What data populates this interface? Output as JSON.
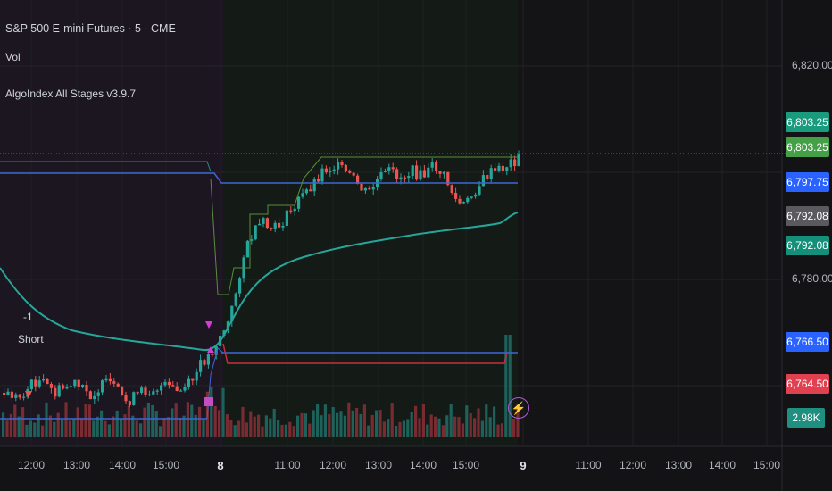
{
  "header": {
    "title": "S&P 500 E-mini Futures · 5 · CME",
    "vol_label": "Vol",
    "indicator_label": "AlgoIndex All Stages v3.9.7"
  },
  "price_axis": {
    "labels": [
      "6,820.00",
      "6,780.00"
    ]
  },
  "price_tags": [
    {
      "text": "6,803.25",
      "color": "#1a9b7e"
    },
    {
      "text": "6,803.25",
      "color": "#43a047"
    },
    {
      "text": "6,797.75",
      "color": "#2962ff"
    },
    {
      "text": "6,792.08",
      "color": "#5a5a5e"
    },
    {
      "text": "6,792.08",
      "color": "#138f7a"
    },
    {
      "text": "6,766.50",
      "color": "#2962ff"
    },
    {
      "text": "6,764.50",
      "color": "#e0404f"
    },
    {
      "text": "2.98K",
      "color": "#1f8f80"
    }
  ],
  "time_axis": {
    "labels": [
      {
        "text": "12:00",
        "bold": false
      },
      {
        "text": "13:00",
        "bold": false
      },
      {
        "text": "14:00",
        "bold": false
      },
      {
        "text": "15:00",
        "bold": false
      },
      {
        "text": "8",
        "bold": true
      },
      {
        "text": "11:00",
        "bold": false
      },
      {
        "text": "12:00",
        "bold": false
      },
      {
        "text": "13:00",
        "bold": false
      },
      {
        "text": "14:00",
        "bold": false
      },
      {
        "text": "15:00",
        "bold": false
      },
      {
        "text": "9",
        "bold": true
      },
      {
        "text": "11:00",
        "bold": false
      },
      {
        "text": "12:00",
        "bold": false
      },
      {
        "text": "13:00",
        "bold": false
      },
      {
        "text": "14:00",
        "bold": false
      },
      {
        "text": "15:00",
        "bold": false
      }
    ]
  },
  "annotations": {
    "signal_value": "-1",
    "signal_label": "Short"
  },
  "colors": {
    "up": "#26a69a",
    "down": "#ef5350",
    "vwap": "#26a69a",
    "level": "#3d66d6",
    "stop": "#c62f3f",
    "signal": "#d83ad8"
  },
  "icons": {
    "alert": "lightning-bolt-icon"
  }
}
